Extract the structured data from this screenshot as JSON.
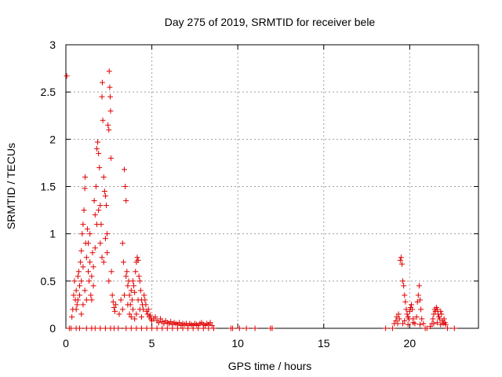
{
  "chart_data": {
    "type": "scatter",
    "title": "Day 275 of 2019, SRMTID for receiver bele",
    "xlabel": "GPS time / hours",
    "ylabel": "SRMTID / TECUs",
    "xlim": [
      0,
      24
    ],
    "ylim": [
      0,
      3
    ],
    "xticks": [
      0,
      5,
      10,
      15,
      20
    ],
    "yticks": [
      0,
      0.5,
      1,
      1.5,
      2,
      2.5,
      3
    ],
    "xtick_labels": [
      "0",
      "5",
      "10",
      "15",
      "20"
    ],
    "ytick_labels": [
      "0",
      "0.5",
      "1",
      "1.5",
      "2",
      "2.5",
      "3"
    ],
    "grid": true,
    "marker": "+",
    "color": "#e00000",
    "series": [
      {
        "name": "SRMTID",
        "points": [
          [
            0.05,
            2.67
          ],
          [
            0.2,
            0.0
          ],
          [
            0.35,
            0.12
          ],
          [
            0.4,
            0.2
          ],
          [
            0.45,
            0.35
          ],
          [
            0.5,
            0.5
          ],
          [
            0.55,
            0.3
          ],
          [
            0.6,
            0.4
          ],
          [
            0.65,
            0.25
          ],
          [
            0.7,
            0.55
          ],
          [
            0.75,
            0.6
          ],
          [
            0.8,
            0.45
          ],
          [
            0.85,
            0.7
          ],
          [
            0.9,
            0.82
          ],
          [
            0.95,
            1.0
          ],
          [
            1.0,
            1.1
          ],
          [
            1.05,
            1.25
          ],
          [
            1.1,
            1.48
          ],
          [
            1.12,
            1.6
          ],
          [
            1.15,
            0.9
          ],
          [
            1.2,
            0.75
          ],
          [
            1.25,
            1.05
          ],
          [
            1.3,
            0.6
          ],
          [
            1.35,
            0.5
          ],
          [
            1.4,
            0.7
          ],
          [
            1.45,
            0.35
          ],
          [
            1.5,
            0.3
          ],
          [
            1.55,
            0.8
          ],
          [
            1.6,
            0.65
          ],
          [
            1.65,
            1.35
          ],
          [
            1.7,
            1.2
          ],
          [
            1.75,
            1.5
          ],
          [
            1.8,
            1.9
          ],
          [
            1.85,
            1.97
          ],
          [
            1.9,
            1.85
          ],
          [
            1.95,
            1.7
          ],
          [
            2.0,
            1.3
          ],
          [
            2.05,
            1.1
          ],
          [
            2.1,
            2.45
          ],
          [
            2.12,
            2.6
          ],
          [
            2.15,
            2.2
          ],
          [
            2.2,
            1.6
          ],
          [
            2.25,
            1.45
          ],
          [
            2.3,
            1.4
          ],
          [
            2.35,
            1.3
          ],
          [
            2.4,
            1.0
          ],
          [
            2.45,
            2.15
          ],
          [
            2.5,
            2.1
          ],
          [
            2.52,
            2.72
          ],
          [
            2.55,
            2.55
          ],
          [
            2.58,
            2.45
          ],
          [
            2.6,
            2.3
          ],
          [
            2.62,
            1.8
          ],
          [
            2.65,
            0.6
          ],
          [
            2.7,
            0.35
          ],
          [
            2.75,
            0.28
          ],
          [
            2.8,
            0.22
          ],
          [
            2.85,
            0.18
          ],
          [
            2.9,
            0.25
          ],
          [
            0.9,
            0.5
          ],
          [
            1.0,
            0.65
          ],
          [
            1.1,
            0.4
          ],
          [
            1.2,
            0.3
          ],
          [
            1.3,
            0.9
          ],
          [
            1.4,
            1.0
          ],
          [
            1.5,
            0.55
          ],
          [
            1.6,
            0.45
          ],
          [
            1.7,
            0.85
          ],
          [
            1.8,
            1.1
          ],
          [
            1.9,
            1.25
          ],
          [
            2.0,
            0.9
          ],
          [
            2.1,
            0.75
          ],
          [
            2.2,
            0.7
          ],
          [
            2.3,
            0.95
          ],
          [
            2.4,
            0.8
          ],
          [
            2.5,
            0.5
          ],
          [
            0.6,
            0.2
          ],
          [
            0.7,
            0.3
          ],
          [
            0.8,
            0.35
          ],
          [
            0.9,
            0.15
          ],
          [
            1.0,
            0.25
          ],
          [
            3.05,
            0.0
          ],
          [
            3.1,
            0.15
          ],
          [
            3.2,
            0.3
          ],
          [
            3.3,
            0.9
          ],
          [
            3.35,
            0.7
          ],
          [
            3.4,
            1.68
          ],
          [
            3.45,
            1.5
          ],
          [
            3.5,
            1.35
          ],
          [
            3.55,
            0.6
          ],
          [
            3.6,
            0.45
          ],
          [
            3.65,
            0.5
          ],
          [
            3.7,
            0.35
          ],
          [
            3.75,
            0.25
          ],
          [
            3.8,
            0.4
          ],
          [
            3.85,
            0.3
          ],
          [
            3.9,
            0.5
          ],
          [
            3.95,
            0.45
          ],
          [
            4.0,
            0.38
          ],
          [
            4.05,
            0.6
          ],
          [
            4.1,
            0.7
          ],
          [
            4.15,
            0.75
          ],
          [
            4.2,
            0.72
          ],
          [
            4.25,
            0.55
          ],
          [
            4.3,
            0.5
          ],
          [
            4.35,
            0.4
          ],
          [
            4.4,
            0.3
          ],
          [
            4.45,
            0.25
          ],
          [
            4.5,
            0.2
          ],
          [
            4.55,
            0.35
          ],
          [
            4.6,
            0.3
          ],
          [
            4.65,
            0.25
          ],
          [
            4.7,
            0.18
          ],
          [
            4.75,
            0.15
          ],
          [
            4.8,
            0.2
          ],
          [
            4.85,
            0.12
          ],
          [
            4.9,
            0.14
          ],
          [
            4.95,
            0.1
          ],
          [
            5.0,
            0.08
          ],
          [
            3.3,
            0.2
          ],
          [
            3.4,
            0.35
          ],
          [
            3.5,
            0.55
          ],
          [
            3.6,
            0.25
          ],
          [
            3.7,
            0.15
          ],
          [
            3.8,
            0.12
          ],
          [
            3.9,
            0.2
          ],
          [
            4.0,
            0.1
          ],
          [
            4.1,
            0.15
          ],
          [
            4.2,
            0.3
          ],
          [
            4.3,
            0.2
          ],
          [
            4.4,
            0.12
          ],
          [
            5.1,
            0.1
          ],
          [
            5.2,
            0.12
          ],
          [
            5.3,
            0.08
          ],
          [
            5.4,
            0.06
          ],
          [
            5.5,
            0.1
          ],
          [
            5.6,
            0.07
          ],
          [
            5.7,
            0.05
          ],
          [
            5.8,
            0.08
          ],
          [
            5.9,
            0.06
          ],
          [
            6.0,
            0.05
          ],
          [
            6.1,
            0.07
          ],
          [
            6.2,
            0.04
          ],
          [
            6.3,
            0.06
          ],
          [
            6.4,
            0.05
          ],
          [
            6.5,
            0.04
          ],
          [
            6.6,
            0.06
          ],
          [
            6.7,
            0.03
          ],
          [
            6.8,
            0.05
          ],
          [
            6.9,
            0.04
          ],
          [
            7.0,
            0.05
          ],
          [
            7.1,
            0.03
          ],
          [
            7.2,
            0.05
          ],
          [
            7.3,
            0.04
          ],
          [
            7.4,
            0.03
          ],
          [
            7.5,
            0.05
          ],
          [
            7.6,
            0.04
          ],
          [
            7.7,
            0.03
          ],
          [
            7.8,
            0.05
          ],
          [
            7.9,
            0.06
          ],
          [
            8.0,
            0.04
          ],
          [
            8.1,
            0.03
          ],
          [
            8.2,
            0.05
          ],
          [
            8.3,
            0.04
          ],
          [
            8.4,
            0.06
          ],
          [
            8.5,
            0.03
          ],
          [
            0.3,
            0.0
          ],
          [
            0.6,
            0.0
          ],
          [
            0.8,
            0.0
          ],
          [
            1.2,
            0.0
          ],
          [
            1.5,
            0.0
          ],
          [
            1.7,
            0.0
          ],
          [
            2.0,
            0.0
          ],
          [
            2.3,
            0.0
          ],
          [
            2.6,
            0.0
          ],
          [
            2.8,
            0.0
          ],
          [
            3.5,
            0.0
          ],
          [
            3.8,
            0.0
          ],
          [
            4.1,
            0.0
          ],
          [
            4.4,
            0.0
          ],
          [
            4.7,
            0.0
          ],
          [
            5.0,
            0.0
          ],
          [
            5.3,
            0.0
          ],
          [
            5.6,
            0.0
          ],
          [
            5.9,
            0.0
          ],
          [
            6.2,
            0.0
          ],
          [
            6.5,
            0.0
          ],
          [
            6.8,
            0.0
          ],
          [
            7.1,
            0.0
          ],
          [
            7.4,
            0.0
          ],
          [
            7.7,
            0.0
          ],
          [
            8.0,
            0.0
          ],
          [
            8.3,
            0.0
          ],
          [
            8.6,
            0.0
          ],
          [
            9.6,
            0.0
          ],
          [
            9.7,
            0.0
          ],
          [
            10.1,
            0.0
          ],
          [
            10.5,
            0.0
          ],
          [
            11.0,
            0.0
          ],
          [
            11.9,
            0.0
          ],
          [
            12.0,
            0.0
          ],
          [
            18.6,
            0.0
          ],
          [
            19.0,
            0.0
          ],
          [
            19.1,
            0.05
          ],
          [
            19.2,
            0.08
          ],
          [
            19.25,
            0.12
          ],
          [
            19.3,
            0.05
          ],
          [
            19.35,
            0.15
          ],
          [
            19.4,
            0.1
          ],
          [
            19.45,
            0.72
          ],
          [
            19.5,
            0.75
          ],
          [
            19.55,
            0.68
          ],
          [
            19.6,
            0.5
          ],
          [
            19.65,
            0.45
          ],
          [
            19.7,
            0.35
          ],
          [
            19.75,
            0.28
          ],
          [
            19.8,
            0.2
          ],
          [
            19.85,
            0.15
          ],
          [
            19.9,
            0.12
          ],
          [
            19.95,
            0.1
          ],
          [
            20.0,
            0.18
          ],
          [
            20.05,
            0.22
          ],
          [
            20.1,
            0.25
          ],
          [
            20.15,
            0.2
          ],
          [
            20.2,
            0.1
          ],
          [
            20.3,
            0.05
          ],
          [
            20.4,
            0.12
          ],
          [
            20.45,
            0.28
          ],
          [
            20.5,
            0.35
          ],
          [
            20.55,
            0.45
          ],
          [
            20.6,
            0.3
          ],
          [
            20.65,
            0.2
          ],
          [
            20.7,
            0.1
          ],
          [
            20.8,
            0.05
          ],
          [
            20.9,
            0.0
          ],
          [
            21.0,
            0.0
          ],
          [
            21.2,
            0.02
          ],
          [
            21.3,
            0.05
          ],
          [
            21.35,
            0.1
          ],
          [
            21.4,
            0.15
          ],
          [
            21.45,
            0.2
          ],
          [
            21.5,
            0.18
          ],
          [
            21.55,
            0.22
          ],
          [
            21.6,
            0.2
          ],
          [
            21.65,
            0.15
          ],
          [
            21.7,
            0.12
          ],
          [
            21.75,
            0.1
          ],
          [
            21.8,
            0.18
          ],
          [
            21.85,
            0.15
          ],
          [
            21.9,
            0.08
          ],
          [
            21.95,
            0.05
          ],
          [
            22.0,
            0.1
          ],
          [
            22.05,
            0.06
          ],
          [
            22.1,
            0.04
          ],
          [
            22.2,
            0.0
          ],
          [
            22.6,
            0.0
          ],
          [
            19.6,
            0.05
          ],
          [
            19.7,
            0.08
          ],
          [
            19.9,
            0.04
          ],
          [
            20.2,
            0.06
          ],
          [
            20.6,
            0.04
          ],
          [
            21.4,
            0.05
          ],
          [
            21.6,
            0.06
          ],
          [
            21.8,
            0.04
          ]
        ]
      }
    ]
  }
}
